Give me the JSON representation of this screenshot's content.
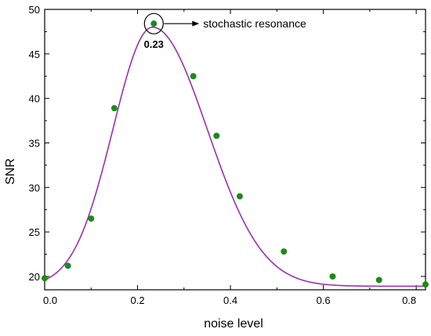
{
  "chart_data": {
    "type": "scatter",
    "title": "",
    "xlabel": "noise level",
    "ylabel": "SNR",
    "xlim": [
      0,
      0.82
    ],
    "ylim": [
      18.5,
      50
    ],
    "xticks": [
      0.0,
      0.2,
      0.4,
      0.6,
      0.8
    ],
    "xtick_labels": [
      "0.0",
      "0.2",
      "0.4",
      "0.6",
      "0.8"
    ],
    "yticks": [
      20,
      25,
      30,
      35,
      40,
      45,
      50
    ],
    "ytick_labels": [
      "20",
      "25",
      "30",
      "35",
      "40",
      "45",
      "50"
    ],
    "grid": false,
    "series": [
      {
        "kind": "scatter",
        "color": "#1a8a1a",
        "points": [
          {
            "x": 0.0,
            "y": 19.8
          },
          {
            "x": 0.05,
            "y": 21.2
          },
          {
            "x": 0.1,
            "y": 26.5
          },
          {
            "x": 0.15,
            "y": 38.9
          },
          {
            "x": 0.235,
            "y": 48.4
          },
          {
            "x": 0.32,
            "y": 42.5
          },
          {
            "x": 0.37,
            "y": 35.8
          },
          {
            "x": 0.42,
            "y": 29.0
          },
          {
            "x": 0.515,
            "y": 22.8
          },
          {
            "x": 0.62,
            "y": 20.0
          },
          {
            "x": 0.72,
            "y": 19.6
          },
          {
            "x": 0.82,
            "y": 19.1
          }
        ]
      },
      {
        "kind": "fit-curve",
        "color": "#9b30b0",
        "curve": {
          "base": 18.9,
          "peak_x": 0.232,
          "peak_y": 48.0,
          "width_left": 0.085,
          "width_right": 0.118
        }
      }
    ],
    "annotation": {
      "text": "stochastic resonance",
      "value_label": "0.23",
      "point": {
        "x": 0.235,
        "y": 48.4
      }
    }
  }
}
